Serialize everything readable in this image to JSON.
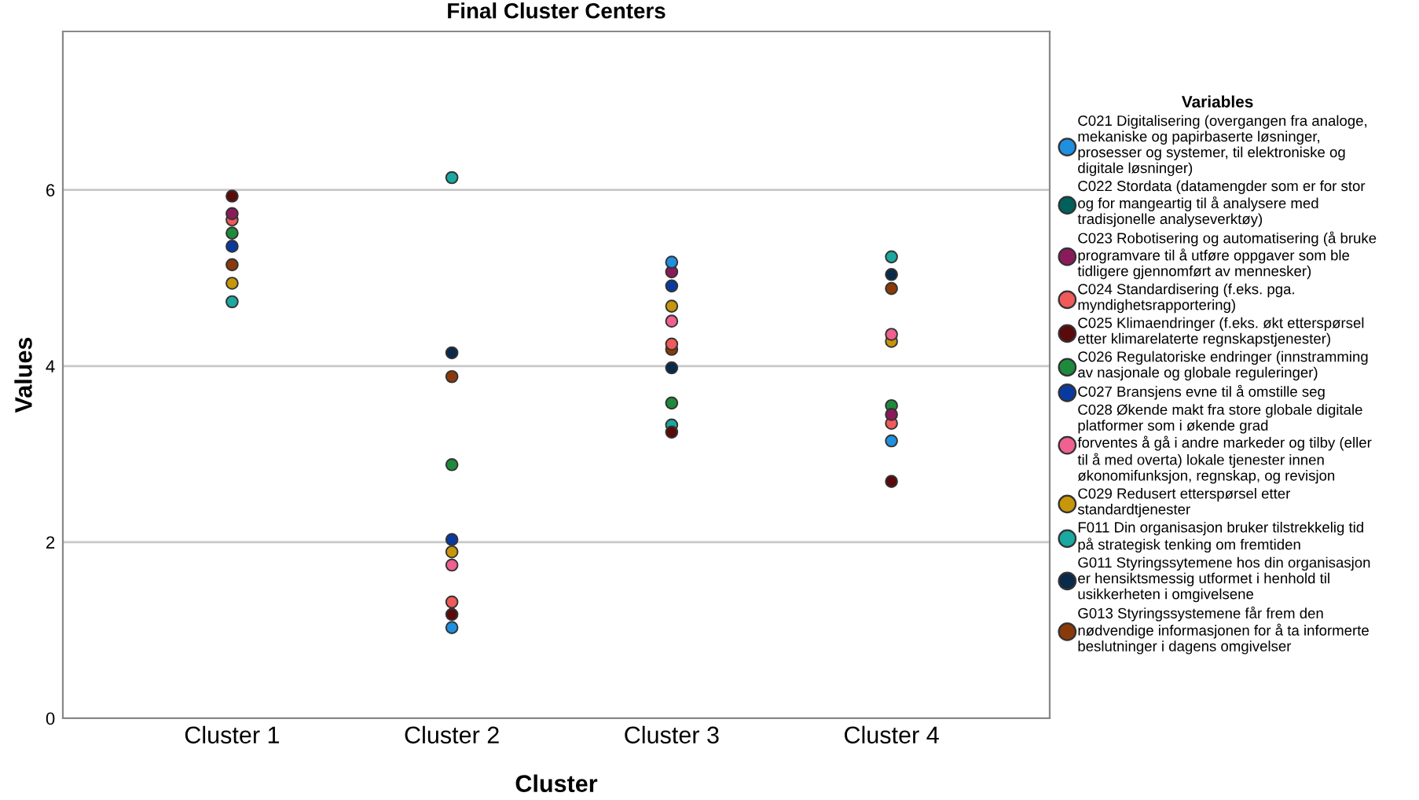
{
  "chart_data": {
    "type": "scatter",
    "title": "Final Cluster Centers",
    "xlabel": "Cluster",
    "ylabel": "Values",
    "legend_title": "Variables",
    "categories": [
      "Cluster 1",
      "Cluster 2",
      "Cluster 3",
      "Cluster 4"
    ],
    "ylim": [
      0,
      7.8
    ],
    "yticks": [
      0,
      2,
      4,
      6
    ],
    "grid": "y",
    "legend": "right",
    "marker": "circle",
    "series": [
      {
        "name": "C021 Digitalisering (overgangen fra analoge,\nmekaniske og papirbaserte løsninger,\nprosesser og systemer, til elektroniske og\ndigitale løsninger)",
        "color": "#1f8fe0",
        "values": [
          null,
          1.03,
          5.18,
          3.15
        ]
      },
      {
        "name": "C022 Stordata (datamengder som er for stor\nog for mangeartig til å analysere med\ntradisjonelle analyseverktøy)",
        "color": "#00605c",
        "values": [
          null,
          null,
          null,
          null
        ]
      },
      {
        "name": "C023 Robotisering og automatisering (å bruke\nprogramvare til å utføre oppgaver som ble\ntidligere gjennomført av mennesker)",
        "color": "#8b1a5a",
        "values": [
          5.73,
          null,
          5.07,
          3.45
        ]
      },
      {
        "name": "C024 Standardisering (f.eks. pga.\nmyndighetsrapportering)",
        "color": "#f05a5a",
        "values": [
          5.66,
          1.32,
          4.25,
          3.35
        ]
      },
      {
        "name": "C025 Klimaendringer (f.eks. økt etterspørsel\netter klimarelaterte regnskapstjenester)",
        "color": "#5a0a0a",
        "values": [
          5.93,
          1.18,
          3.25,
          2.69
        ]
      },
      {
        "name": "C026 Regulatoriske endringer (innstramming\nav nasjonale og globale reguleringer)",
        "color": "#1e8a3c",
        "values": [
          5.51,
          2.88,
          3.58,
          3.55
        ]
      },
      {
        "name": "C027 Bransjens evne til å omstille seg",
        "color": "#0a3aa0",
        "values": [
          5.36,
          2.03,
          4.91,
          null
        ]
      },
      {
        "name": "C028 Økende makt fra store globale digitale\nplatformer som i økende grad\nforventes å gå i andre markeder og tilby (eller\ntil å med overta) lokale tjenester innen\nøkonomifunksjon, regnskap, og revisjon",
        "color": "#f06090",
        "values": [
          null,
          1.74,
          4.51,
          4.36
        ]
      },
      {
        "name": "C029 Redusert etterspørsel etter\nstandardtjenester",
        "color": "#c8960a",
        "values": [
          4.94,
          1.89,
          4.68,
          4.28
        ]
      },
      {
        "name": "F011 Din organisasjon bruker tilstrekkelig tid\npå strategisk tenking om fremtiden",
        "color": "#1aa8a0",
        "values": [
          4.73,
          6.14,
          3.33,
          5.24
        ]
      },
      {
        "name": "G011 Styringssytemene hos din organisasjon\ner hensiktsmessig utformet i henhold til\nusikkerheten i omgivelsene",
        "color": "#0a2a4a",
        "values": [
          null,
          4.15,
          3.98,
          5.04
        ]
      },
      {
        "name": "G013 Styringssystemene får frem den\nnødvendige informasjonen for å ta informerte\nbeslutninger i dagens omgivelser",
        "color": "#8a3a0a",
        "values": [
          5.15,
          3.88,
          4.19,
          4.88
        ]
      }
    ]
  }
}
